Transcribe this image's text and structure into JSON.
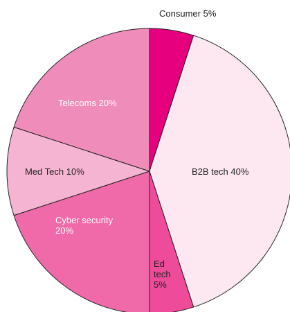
{
  "chart_data": {
    "type": "pie",
    "categories": [
      "Consumer",
      "B2B tech",
      "Ed tech",
      "Cyber security",
      "Med Tech",
      "Telecoms"
    ],
    "values": [
      5,
      40,
      5,
      20,
      10,
      20
    ],
    "value_labels": [
      "5%",
      "40%",
      "5%",
      "20%",
      "10%",
      "20%"
    ],
    "colors": [
      "#e6007e",
      "#fde7f1",
      "#ee4b9b",
      "#f06aa9",
      "#f5b4d1",
      "#f08cba"
    ]
  }
}
